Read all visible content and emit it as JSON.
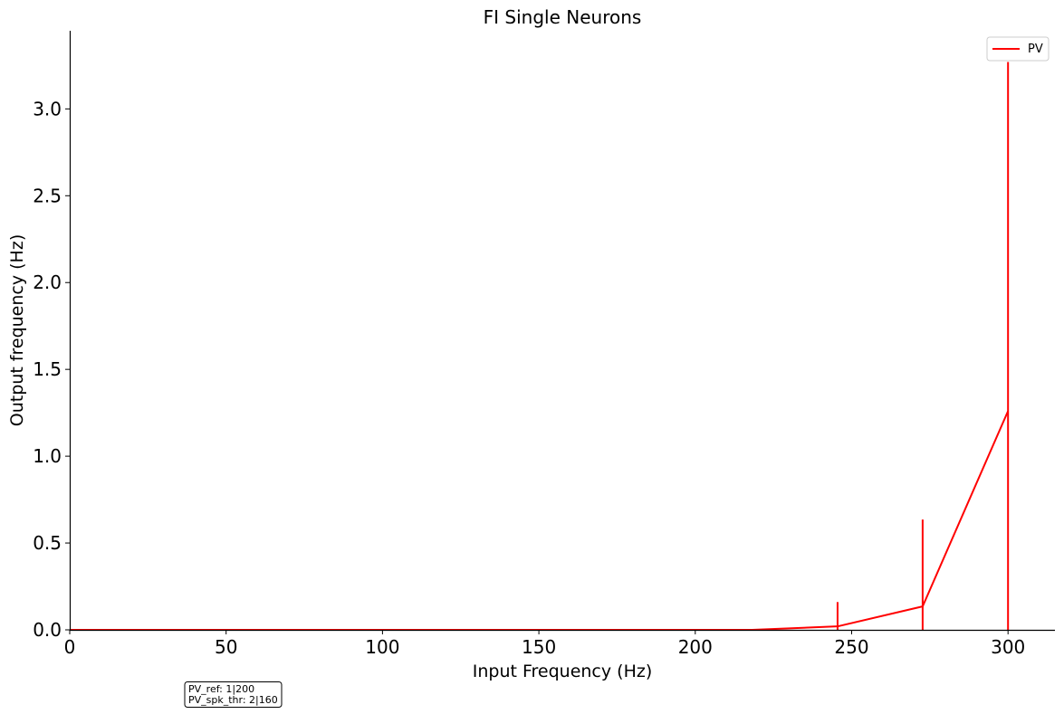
{
  "chart_data": {
    "type": "line",
    "title": "FI Single Neurons",
    "xlabel": "Input Frequency (Hz)",
    "ylabel": "Output frequency (Hz)",
    "xlim": [
      0,
      315
    ],
    "ylim": [
      0,
      3.45
    ],
    "xticks": [
      0,
      50,
      100,
      150,
      200,
      250,
      300
    ],
    "xtick_labels": [
      "0",
      "50",
      "100",
      "150",
      "200",
      "250",
      "300"
    ],
    "yticks": [
      0.0,
      0.5,
      1.0,
      1.5,
      2.0,
      2.5,
      3.0
    ],
    "ytick_labels": [
      "0.0",
      "0.5",
      "1.0",
      "1.5",
      "2.0",
      "2.5",
      "3.0"
    ],
    "grid": false,
    "legend_position": "top-right",
    "series": [
      {
        "name": "PV",
        "color": "#ff0000",
        "x": [
          0,
          27.3,
          54.5,
          81.8,
          109.1,
          136.4,
          163.6,
          190.9,
          218.2,
          245.5,
          272.7,
          300
        ],
        "y": [
          0,
          0,
          0,
          0,
          0,
          0,
          0,
          0,
          0,
          0.02,
          0.135,
          1.26
        ],
        "error": [
          0,
          0,
          0,
          0,
          0,
          0,
          0,
          0,
          0,
          0.14,
          0.5,
          2.01
        ]
      }
    ]
  },
  "annotation": {
    "line1": "PV_ref: 1|200",
    "line2": "PV_spk_thr: 2|160"
  }
}
